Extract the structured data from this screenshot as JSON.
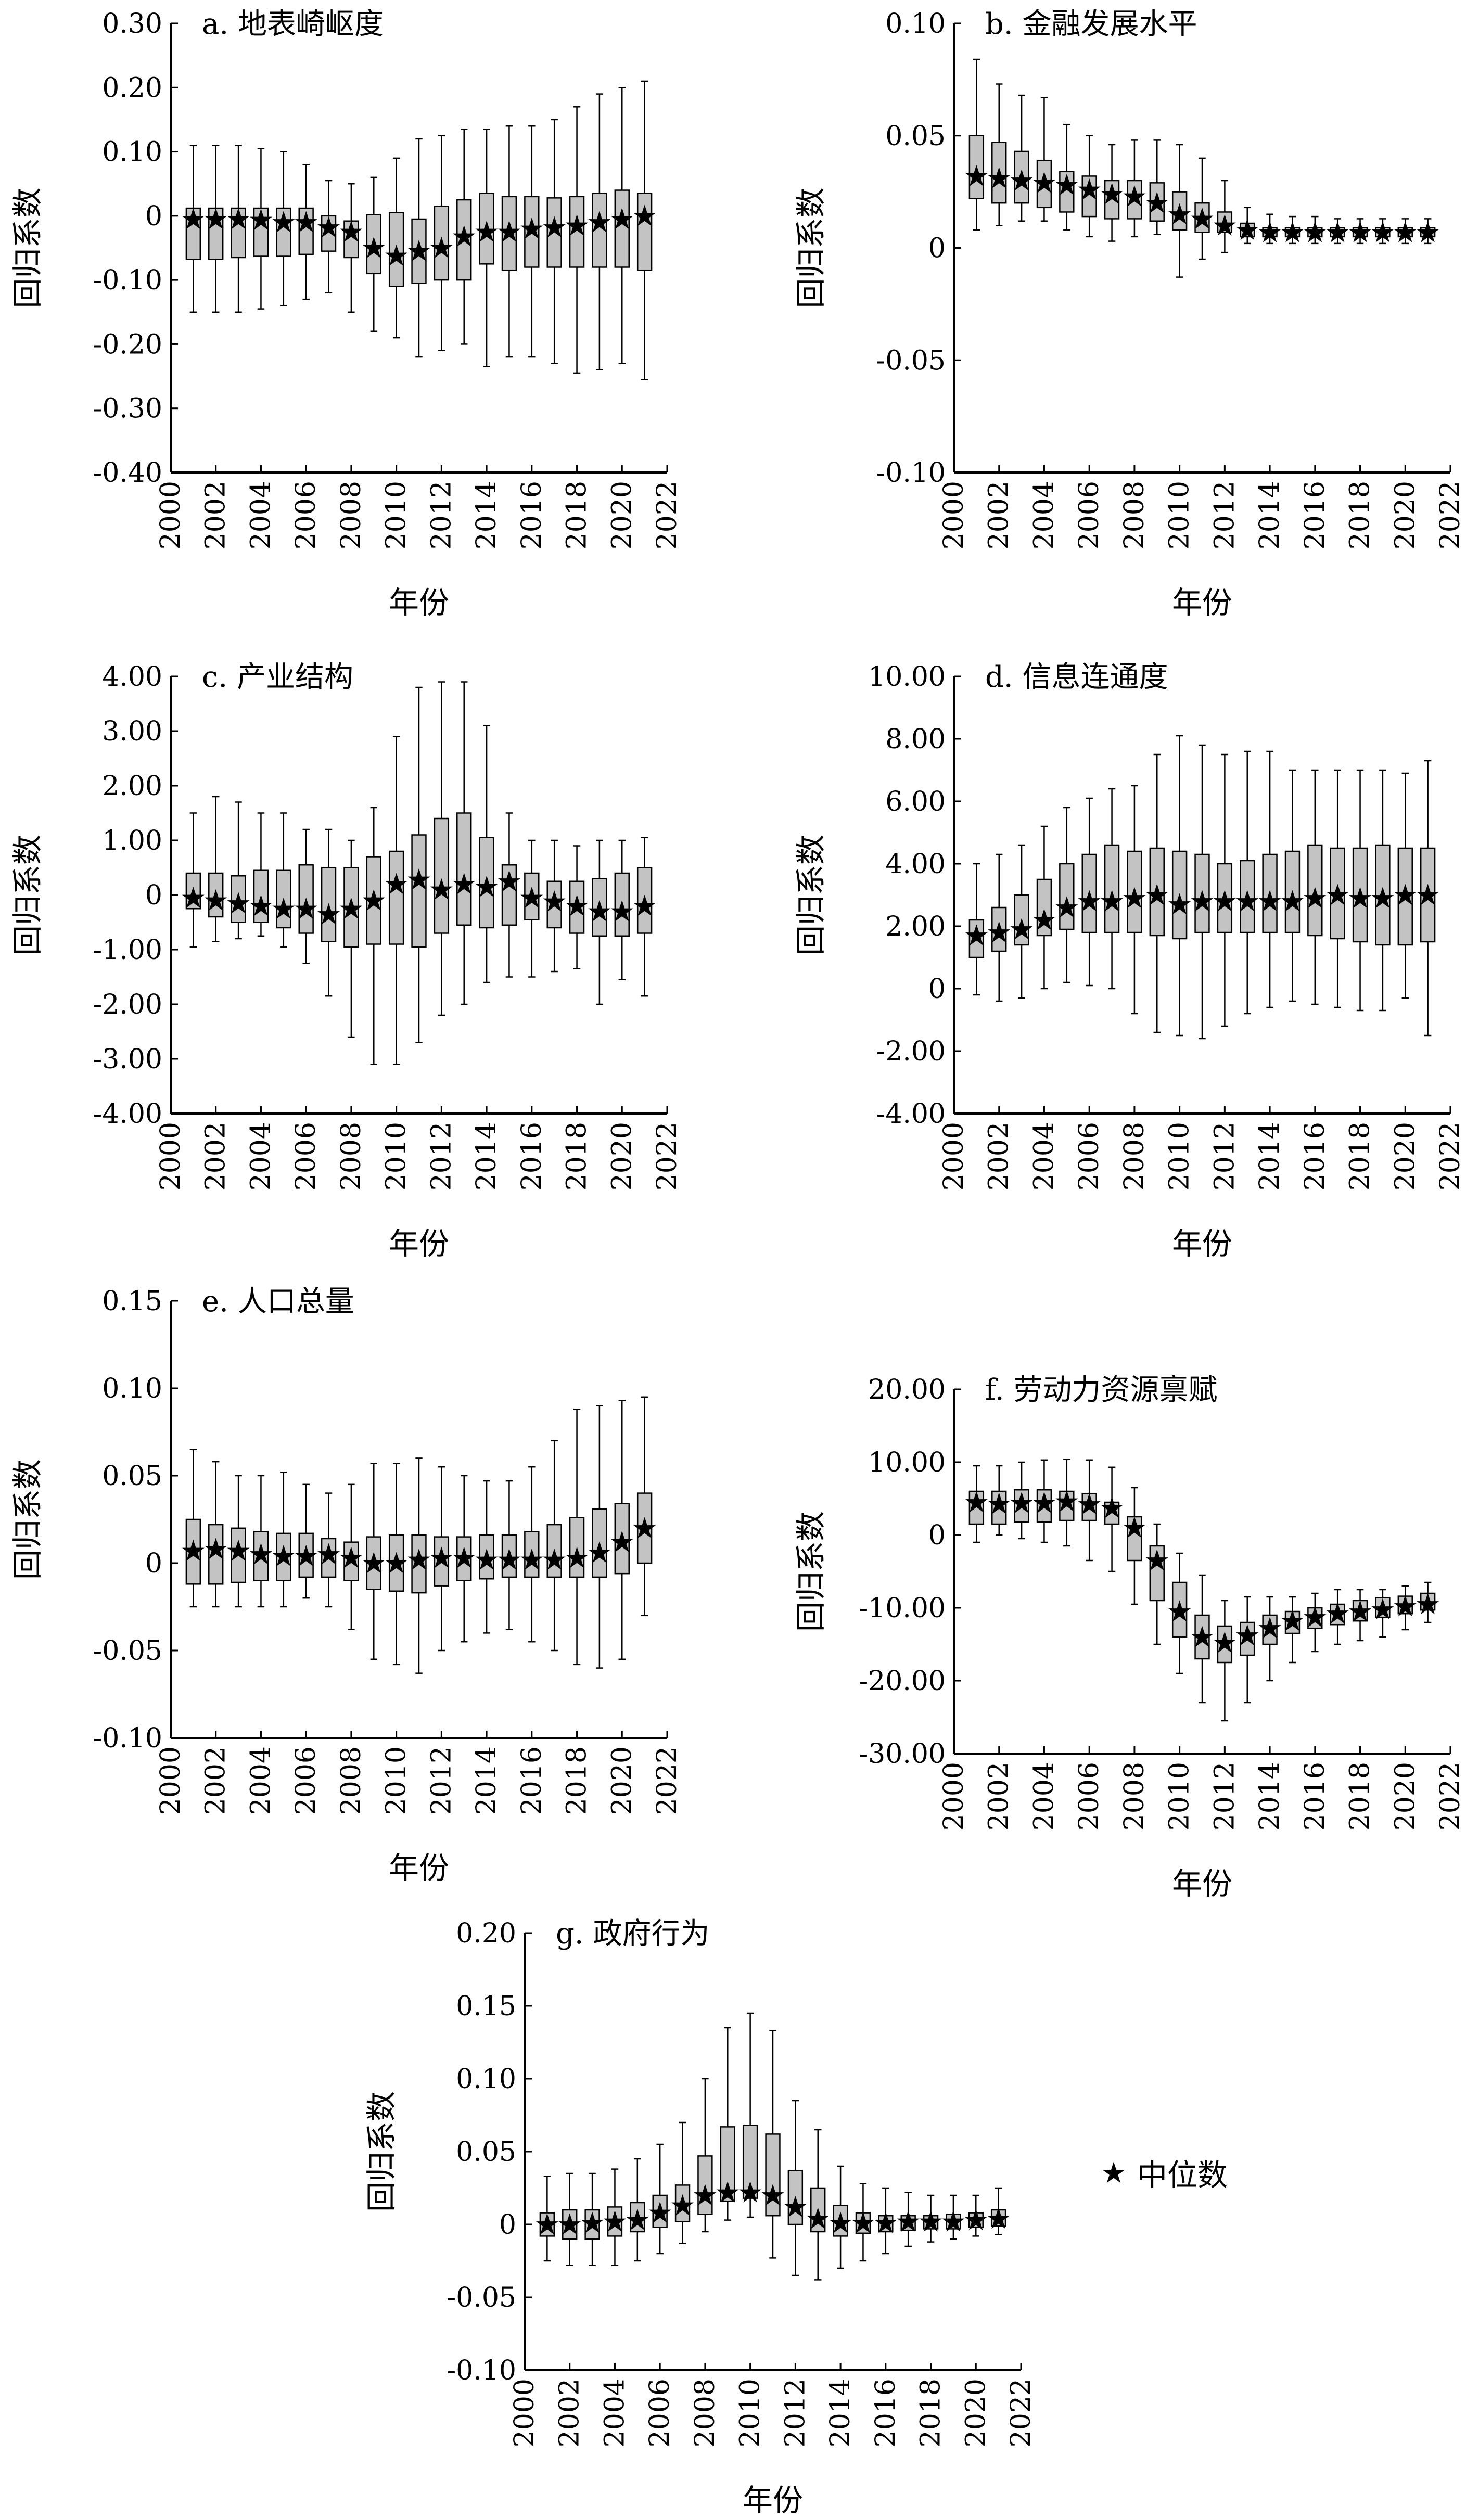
{
  "figure": {
    "legend": {
      "symbol": "★",
      "label": "中位数"
    }
  },
  "chart_data": [
    {
      "type": "box",
      "title": "a. 地表崎岖度",
      "xlabel": "年份",
      "ylabel": "回归系数",
      "y_ticks": [
        0.3,
        0.2,
        0.1,
        0,
        -0.1,
        -0.2,
        -0.3,
        -0.4
      ],
      "y_tick_labels": [
        "0.30",
        "0.20",
        "0.10",
        "0",
        "-0.10",
        "-0.20",
        "-0.30",
        "-0.40"
      ],
      "ylim": [
        -0.4,
        0.3
      ],
      "x_ticks": [
        2000,
        2002,
        2004,
        2006,
        2008,
        2010,
        2012,
        2014,
        2016,
        2018,
        2020,
        2022
      ],
      "xlim": [
        2000,
        2022
      ],
      "years": [
        2001,
        2002,
        2003,
        2004,
        2005,
        2006,
        2007,
        2008,
        2009,
        2010,
        2011,
        2012,
        2013,
        2014,
        2015,
        2016,
        2017,
        2018,
        2019,
        2020,
        2021
      ],
      "whisker_low": [
        -0.15,
        -0.15,
        -0.15,
        -0.145,
        -0.14,
        -0.13,
        -0.12,
        -0.15,
        -0.18,
        -0.19,
        -0.22,
        -0.21,
        -0.2,
        -0.235,
        -0.22,
        -0.22,
        -0.23,
        -0.245,
        -0.24,
        -0.23,
        -0.255
      ],
      "q1": [
        -0.068,
        -0.068,
        -0.065,
        -0.063,
        -0.063,
        -0.06,
        -0.055,
        -0.065,
        -0.09,
        -0.11,
        -0.105,
        -0.1,
        -0.1,
        -0.075,
        -0.085,
        -0.08,
        -0.08,
        -0.08,
        -0.08,
        -0.08,
        -0.085
      ],
      "median": [
        -0.005,
        -0.005,
        -0.005,
        -0.006,
        -0.01,
        -0.01,
        -0.018,
        -0.025,
        -0.05,
        -0.062,
        -0.055,
        -0.05,
        -0.032,
        -0.025,
        -0.025,
        -0.02,
        -0.018,
        -0.015,
        -0.01,
        -0.005,
        0
      ],
      "q3": [
        0.012,
        0.012,
        0.012,
        0.012,
        0.012,
        0.012,
        0.0,
        -0.008,
        0.002,
        0.005,
        -0.005,
        0.015,
        0.025,
        0.035,
        0.03,
        0.03,
        0.028,
        0.03,
        0.035,
        0.04,
        0.035
      ],
      "whisker_high": [
        0.11,
        0.11,
        0.11,
        0.105,
        0.1,
        0.08,
        0.055,
        0.05,
        0.06,
        0.09,
        0.12,
        0.125,
        0.135,
        0.135,
        0.14,
        0.14,
        0.15,
        0.17,
        0.19,
        0.2,
        0.21
      ]
    },
    {
      "type": "box",
      "title": "b. 金融发展水平",
      "xlabel": "年份",
      "ylabel": "回归系数",
      "y_ticks": [
        0.1,
        0.05,
        0,
        -0.05,
        -0.1
      ],
      "y_tick_labels": [
        "0.10",
        "0.05",
        "0",
        "-0.05",
        "-0.10"
      ],
      "ylim": [
        -0.1,
        0.1
      ],
      "x_ticks": [
        2000,
        2002,
        2004,
        2006,
        2008,
        2010,
        2012,
        2014,
        2016,
        2018,
        2020,
        2022
      ],
      "xlim": [
        2000,
        2022
      ],
      "years": [
        2001,
        2002,
        2003,
        2004,
        2005,
        2006,
        2007,
        2008,
        2009,
        2010,
        2011,
        2012,
        2013,
        2014,
        2015,
        2016,
        2017,
        2018,
        2019,
        2020,
        2021
      ],
      "whisker_low": [
        0.008,
        0.01,
        0.012,
        0.012,
        0.008,
        0.005,
        0.003,
        0.005,
        0.006,
        -0.013,
        -0.005,
        -0.002,
        0.002,
        0.002,
        0.002,
        0.002,
        0.002,
        0.002,
        0.002,
        0.002,
        0.002
      ],
      "q1": [
        0.022,
        0.02,
        0.02,
        0.018,
        0.016,
        0.014,
        0.013,
        0.013,
        0.012,
        0.008,
        0.007,
        0.007,
        0.005,
        0.005,
        0.005,
        0.005,
        0.005,
        0.005,
        0.005,
        0.005,
        0.005
      ],
      "median": [
        0.032,
        0.031,
        0.03,
        0.029,
        0.028,
        0.026,
        0.024,
        0.023,
        0.02,
        0.015,
        0.013,
        0.01,
        0.008,
        0.007,
        0.007,
        0.007,
        0.007,
        0.007,
        0.007,
        0.007,
        0.007
      ],
      "q3": [
        0.05,
        0.047,
        0.043,
        0.039,
        0.034,
        0.032,
        0.03,
        0.03,
        0.029,
        0.025,
        0.02,
        0.016,
        0.011,
        0.009,
        0.009,
        0.009,
        0.009,
        0.009,
        0.009,
        0.009,
        0.009
      ],
      "whisker_high": [
        0.084,
        0.073,
        0.068,
        0.067,
        0.055,
        0.05,
        0.046,
        0.048,
        0.048,
        0.046,
        0.04,
        0.03,
        0.018,
        0.015,
        0.014,
        0.014,
        0.013,
        0.013,
        0.013,
        0.013,
        0.013
      ]
    },
    {
      "type": "box",
      "title": "c. 产业结构",
      "xlabel": "年份",
      "ylabel": "回归系数",
      "y_ticks": [
        4.0,
        3.0,
        2.0,
        1.0,
        0,
        -1.0,
        -2.0,
        -3.0,
        -4.0
      ],
      "y_tick_labels": [
        "4.00",
        "3.00",
        "2.00",
        "1.00",
        "0",
        "-1.00",
        "-2.00",
        "-3.00",
        "-4.00"
      ],
      "ylim": [
        -4.0,
        4.0
      ],
      "x_ticks": [
        2000,
        2002,
        2004,
        2006,
        2008,
        2010,
        2012,
        2014,
        2016,
        2018,
        2020,
        2022
      ],
      "xlim": [
        2000,
        2022
      ],
      "years": [
        2001,
        2002,
        2003,
        2004,
        2005,
        2006,
        2007,
        2008,
        2009,
        2010,
        2011,
        2012,
        2013,
        2014,
        2015,
        2016,
        2017,
        2018,
        2019,
        2020,
        2021
      ],
      "whisker_low": [
        -0.95,
        -0.85,
        -0.8,
        -0.75,
        -0.95,
        -1.25,
        -1.85,
        -2.6,
        -3.1,
        -3.1,
        -2.7,
        -2.2,
        -2.0,
        -1.6,
        -1.5,
        -1.5,
        -1.4,
        -1.35,
        -2.0,
        -1.55,
        -1.85
      ],
      "q1": [
        -0.25,
        -0.4,
        -0.5,
        -0.5,
        -0.6,
        -0.7,
        -0.85,
        -0.95,
        -0.9,
        -0.9,
        -0.95,
        -0.7,
        -0.55,
        -0.6,
        -0.55,
        -0.45,
        -0.6,
        -0.7,
        -0.75,
        -0.75,
        -0.7
      ],
      "median": [
        -0.05,
        -0.1,
        -0.15,
        -0.2,
        -0.25,
        -0.25,
        -0.35,
        -0.25,
        -0.1,
        0.2,
        0.28,
        0.1,
        0.2,
        0.15,
        0.25,
        -0.05,
        -0.12,
        -0.2,
        -0.3,
        -0.3,
        -0.2
      ],
      "q3": [
        0.4,
        0.4,
        0.35,
        0.45,
        0.45,
        0.55,
        0.5,
        0.5,
        0.7,
        0.8,
        1.1,
        1.4,
        1.5,
        1.05,
        0.55,
        0.4,
        0.25,
        0.25,
        0.3,
        0.4,
        0.5
      ],
      "whisker_high": [
        1.5,
        1.8,
        1.7,
        1.5,
        1.5,
        1.2,
        1.2,
        1.0,
        1.6,
        2.9,
        3.8,
        3.9,
        3.9,
        3.1,
        1.5,
        1.0,
        1.0,
        0.9,
        1.0,
        1.0,
        1.05
      ]
    },
    {
      "type": "box",
      "title": "d. 信息连通度",
      "xlabel": "年份",
      "ylabel": "回归系数",
      "y_ticks": [
        10.0,
        8.0,
        6.0,
        4.0,
        2.0,
        0,
        -2.0,
        -4.0
      ],
      "y_tick_labels": [
        "10.00",
        "8.00",
        "6.00",
        "4.00",
        "2.00",
        "0",
        "-2.00",
        "-4.00"
      ],
      "ylim": [
        -4.0,
        10.0
      ],
      "x_ticks": [
        2000,
        2002,
        2004,
        2006,
        2008,
        2010,
        2012,
        2014,
        2016,
        2018,
        2020,
        2022
      ],
      "xlim": [
        2000,
        2022
      ],
      "years": [
        2001,
        2002,
        2003,
        2004,
        2005,
        2006,
        2007,
        2008,
        2009,
        2010,
        2011,
        2012,
        2013,
        2014,
        2015,
        2016,
        2017,
        2018,
        2019,
        2020,
        2021
      ],
      "whisker_low": [
        -0.2,
        -0.4,
        -0.3,
        0.0,
        0.2,
        0.1,
        0.0,
        -0.8,
        -1.4,
        -1.5,
        -1.6,
        -1.2,
        -0.8,
        -0.6,
        -0.4,
        -0.5,
        -0.6,
        -0.7,
        -0.7,
        -0.3,
        -1.5
      ],
      "q1": [
        1.0,
        1.2,
        1.4,
        1.7,
        1.9,
        1.8,
        1.8,
        1.8,
        1.7,
        1.6,
        1.8,
        1.8,
        1.8,
        1.8,
        1.8,
        1.7,
        1.6,
        1.5,
        1.4,
        1.4,
        1.5
      ],
      "median": [
        1.7,
        1.8,
        1.9,
        2.2,
        2.6,
        2.8,
        2.8,
        2.9,
        3.0,
        2.7,
        2.8,
        2.8,
        2.8,
        2.8,
        2.8,
        2.9,
        3.0,
        2.9,
        2.9,
        3.0,
        3.0
      ],
      "q3": [
        2.2,
        2.6,
        3.0,
        3.5,
        4.0,
        4.3,
        4.6,
        4.4,
        4.5,
        4.4,
        4.3,
        4.0,
        4.1,
        4.3,
        4.4,
        4.6,
        4.5,
        4.5,
        4.6,
        4.5,
        4.5
      ],
      "whisker_high": [
        4.0,
        4.3,
        4.6,
        5.2,
        5.8,
        6.1,
        6.4,
        6.5,
        7.5,
        8.1,
        7.8,
        7.5,
        7.6,
        7.6,
        7.0,
        7.0,
        7.0,
        7.0,
        7.0,
        6.9,
        7.3
      ]
    },
    {
      "type": "box",
      "title": "e. 人口总量",
      "xlabel": "年份",
      "ylabel": "回归系数",
      "y_ticks": [
        0.15,
        0.1,
        0.05,
        0,
        -0.05,
        -0.1
      ],
      "y_tick_labels": [
        "0.15",
        "0.10",
        "0.05",
        "0",
        "-0.05",
        "-0.10"
      ],
      "ylim": [
        -0.1,
        0.15
      ],
      "x_ticks": [
        2000,
        2002,
        2004,
        2006,
        2008,
        2010,
        2012,
        2014,
        2016,
        2018,
        2020,
        2022
      ],
      "xlim": [
        2000,
        2022
      ],
      "years": [
        2001,
        2002,
        2003,
        2004,
        2005,
        2006,
        2007,
        2008,
        2009,
        2010,
        2011,
        2012,
        2013,
        2014,
        2015,
        2016,
        2017,
        2018,
        2019,
        2020,
        2021
      ],
      "whisker_low": [
        -0.025,
        -0.025,
        -0.025,
        -0.025,
        -0.025,
        -0.02,
        -0.025,
        -0.038,
        -0.055,
        -0.058,
        -0.063,
        -0.05,
        -0.045,
        -0.04,
        -0.038,
        -0.045,
        -0.05,
        -0.058,
        -0.06,
        -0.055,
        -0.03
      ],
      "q1": [
        -0.012,
        -0.012,
        -0.011,
        -0.01,
        -0.01,
        -0.008,
        -0.008,
        -0.01,
        -0.015,
        -0.016,
        -0.017,
        -0.013,
        -0.01,
        -0.009,
        -0.008,
        -0.008,
        -0.008,
        -0.008,
        -0.008,
        -0.006,
        0.0
      ],
      "median": [
        0.007,
        0.008,
        0.007,
        0.005,
        0.004,
        0.004,
        0.005,
        0.003,
        0.0,
        0.0,
        0.002,
        0.003,
        0.003,
        0.002,
        0.002,
        0.002,
        0.002,
        0.003,
        0.006,
        0.012,
        0.02
      ],
      "q3": [
        0.025,
        0.022,
        0.02,
        0.018,
        0.017,
        0.017,
        0.014,
        0.012,
        0.015,
        0.016,
        0.016,
        0.015,
        0.015,
        0.016,
        0.016,
        0.018,
        0.022,
        0.026,
        0.031,
        0.034,
        0.04
      ],
      "whisker_high": [
        0.065,
        0.058,
        0.05,
        0.05,
        0.052,
        0.045,
        0.04,
        0.045,
        0.057,
        0.057,
        0.06,
        0.055,
        0.05,
        0.047,
        0.047,
        0.055,
        0.07,
        0.088,
        0.09,
        0.093,
        0.095
      ]
    },
    {
      "type": "box",
      "title": "f. 劳动力资源禀赋",
      "xlabel": "年份",
      "ylabel": "回归系数",
      "y_ticks": [
        20.0,
        10.0,
        0,
        -10.0,
        -20.0,
        -30.0
      ],
      "y_tick_labels": [
        "20.00",
        "10.00",
        "0",
        "-10.00",
        "-20.00",
        "-30.00"
      ],
      "ylim": [
        -30.0,
        20.0
      ],
      "x_ticks": [
        2000,
        2002,
        2004,
        2006,
        2008,
        2010,
        2012,
        2014,
        2016,
        2018,
        2020,
        2022
      ],
      "xlim": [
        2000,
        2022
      ],
      "years": [
        2001,
        2002,
        2003,
        2004,
        2005,
        2006,
        2007,
        2008,
        2009,
        2010,
        2011,
        2012,
        2013,
        2014,
        2015,
        2016,
        2017,
        2018,
        2019,
        2020,
        2021
      ],
      "whisker_low": [
        -1.0,
        0.0,
        -0.5,
        -1.0,
        -1.5,
        -3.5,
        -5.0,
        -9.5,
        -15.0,
        -19.0,
        -23.0,
        -25.5,
        -23.0,
        -20.0,
        -17.5,
        -16.0,
        -15.0,
        -14.5,
        -14.0,
        -13.0,
        -12.0
      ],
      "q1": [
        1.5,
        1.5,
        1.8,
        1.8,
        2.0,
        2.0,
        1.5,
        -3.5,
        -9.0,
        -14.0,
        -17.0,
        -17.5,
        -16.5,
        -15.0,
        -13.5,
        -12.8,
        -12.3,
        -11.8,
        -11.3,
        -10.8,
        -10.3
      ],
      "median": [
        4.5,
        4.3,
        4.4,
        4.4,
        4.6,
        4.2,
        3.7,
        1.0,
        -3.5,
        -10.5,
        -14.0,
        -14.8,
        -13.8,
        -12.8,
        -11.8,
        -11.3,
        -10.8,
        -10.5,
        -10.2,
        -9.8,
        -9.5
      ],
      "q3": [
        6.0,
        6.0,
        6.2,
        6.2,
        6.0,
        5.7,
        4.5,
        2.5,
        -1.5,
        -6.5,
        -11.0,
        -12.5,
        -12.0,
        -11.0,
        -10.5,
        -10.0,
        -9.5,
        -9.0,
        -8.6,
        -8.4,
        -8.0
      ],
      "whisker_high": [
        9.5,
        9.5,
        10.0,
        10.3,
        10.4,
        10.3,
        9.3,
        6.5,
        1.5,
        -2.5,
        -5.5,
        -9.0,
        -8.5,
        -8.5,
        -8.5,
        -8.0,
        -7.5,
        -7.5,
        -7.5,
        -7.0,
        -6.5
      ]
    },
    {
      "type": "box",
      "title": "g. 政府行为",
      "xlabel": "年份",
      "ylabel": "回归系数",
      "y_ticks": [
        0.2,
        0.15,
        0.1,
        0.05,
        0,
        -0.05,
        -0.1
      ],
      "y_tick_labels": [
        "0.20",
        "0.15",
        "0.10",
        "0.05",
        "0",
        "-0.05",
        "-0.10"
      ],
      "ylim": [
        -0.1,
        0.2
      ],
      "x_ticks": [
        2000,
        2002,
        2004,
        2006,
        2008,
        2010,
        2012,
        2014,
        2016,
        2018,
        2020,
        2022
      ],
      "xlim": [
        2000,
        2022
      ],
      "years": [
        2001,
        2002,
        2003,
        2004,
        2005,
        2006,
        2007,
        2008,
        2009,
        2010,
        2011,
        2012,
        2013,
        2014,
        2015,
        2016,
        2017,
        2018,
        2019,
        2020,
        2021
      ],
      "whisker_low": [
        -0.025,
        -0.028,
        -0.028,
        -0.028,
        -0.025,
        -0.02,
        -0.013,
        -0.005,
        0.003,
        0.005,
        -0.023,
        -0.035,
        -0.038,
        -0.03,
        -0.025,
        -0.02,
        -0.015,
        -0.012,
        -0.01,
        -0.008,
        -0.007
      ],
      "q1": [
        -0.008,
        -0.01,
        -0.01,
        -0.008,
        -0.005,
        -0.002,
        0.002,
        0.007,
        0.016,
        0.018,
        0.006,
        0.0,
        -0.005,
        -0.008,
        -0.006,
        -0.005,
        -0.004,
        -0.003,
        -0.003,
        -0.002,
        -0.001
      ],
      "median": [
        0.0,
        0.0,
        0.001,
        0.002,
        0.003,
        0.008,
        0.013,
        0.02,
        0.022,
        0.022,
        0.02,
        0.012,
        0.004,
        0.001,
        0.001,
        0.001,
        0.002,
        0.002,
        0.002,
        0.003,
        0.004
      ],
      "q3": [
        0.008,
        0.01,
        0.01,
        0.012,
        0.015,
        0.02,
        0.027,
        0.047,
        0.067,
        0.068,
        0.062,
        0.037,
        0.025,
        0.013,
        0.008,
        0.006,
        0.006,
        0.006,
        0.007,
        0.008,
        0.01
      ],
      "whisker_high": [
        0.033,
        0.035,
        0.035,
        0.038,
        0.045,
        0.055,
        0.07,
        0.1,
        0.135,
        0.145,
        0.133,
        0.085,
        0.065,
        0.04,
        0.028,
        0.025,
        0.022,
        0.02,
        0.02,
        0.02,
        0.025
      ]
    }
  ]
}
